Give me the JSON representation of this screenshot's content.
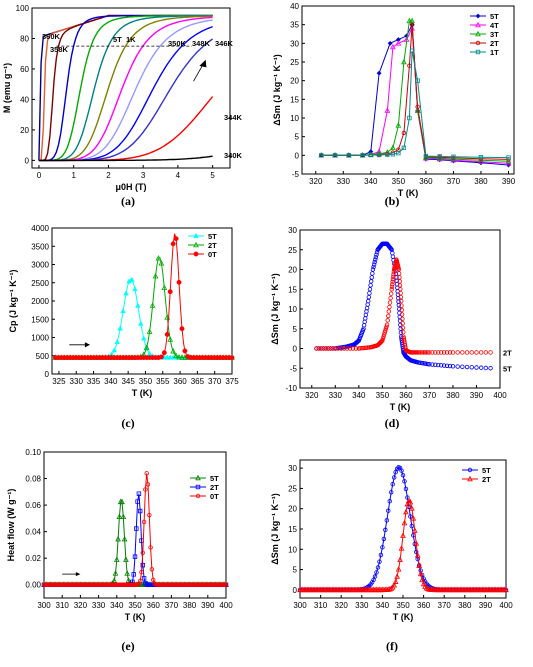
{
  "chart_data": [
    {
      "panel": "(a)",
      "type": "line",
      "xlabel": "μ0H (T)",
      "ylabel": "M (emu g⁻¹)",
      "xlim": [
        -0.2,
        5.5
      ],
      "ylim": [
        -5,
        100
      ],
      "xticks": [
        0,
        1,
        2,
        3,
        4,
        5
      ],
      "yticks": [
        0,
        20,
        40,
        60,
        80,
        100
      ],
      "annotations": [
        "360K",
        "358K",
        "5T",
        "1K",
        "350K",
        "348K",
        "346K",
        "344K",
        "340K"
      ],
      "series": [
        {
          "color": "#000080",
          "H_half": 0.05
        },
        {
          "color": "#e06030",
          "H_half": 0.15
        },
        {
          "color": "#800000",
          "H_half": 0.4
        },
        {
          "color": "#0000cc",
          "H_half": 0.8
        },
        {
          "color": "#00aa00",
          "H_half": 1.2
        },
        {
          "color": "#008080",
          "H_half": 1.6
        },
        {
          "color": "#808000",
          "H_half": 2.0
        },
        {
          "color": "#ff00ff",
          "H_half": 2.4
        },
        {
          "color": "#9999ff",
          "H_half": 2.8
        },
        {
          "color": "#0000ff",
          "H_half": 3.3
        },
        {
          "color": "#3333cc",
          "H_half": 3.8
        },
        {
          "color": "#ff0000",
          "H_half": 5.2
        },
        {
          "color": "#000000",
          "H_half": 9.0
        }
      ]
    },
    {
      "panel": "(b)",
      "type": "line",
      "xlabel": "T (K)",
      "ylabel": "ΔSm (J kg⁻¹ K⁻¹)",
      "xlim": [
        315,
        392
      ],
      "ylim": [
        -5,
        40
      ],
      "xticks": [
        320,
        330,
        340,
        350,
        360,
        370,
        380,
        390
      ],
      "yticks": [
        -5,
        0,
        5,
        10,
        15,
        20,
        25,
        30,
        35,
        40
      ],
      "legend": "top-right",
      "series": [
        {
          "name": "5T",
          "color": "#0000cc",
          "x": [
            322,
            327,
            332,
            337,
            340,
            343,
            347,
            350,
            353,
            355,
            357,
            360,
            365,
            370,
            380,
            390
          ],
          "y": [
            0,
            0,
            0,
            0,
            1,
            22,
            30,
            31,
            32,
            35,
            12,
            -1,
            -1.2,
            -1.5,
            -2,
            -2.6
          ]
        },
        {
          "name": "4T",
          "color": "#ff00ff",
          "x": [
            322,
            327,
            332,
            337,
            340,
            343,
            346,
            348,
            350,
            353,
            355,
            357,
            360,
            365,
            370,
            380,
            390
          ],
          "y": [
            0,
            0,
            0,
            0,
            0.2,
            1,
            12,
            29,
            30,
            31,
            34,
            12,
            -0.8,
            -1,
            -1.3,
            -1.7,
            -2.1
          ]
        },
        {
          "name": "3T",
          "color": "#00aa00",
          "x": [
            322,
            327,
            332,
            337,
            340,
            343,
            346,
            348,
            350,
            352,
            354,
            355,
            357,
            360,
            365,
            370,
            380,
            390
          ],
          "y": [
            0,
            0,
            0,
            0,
            0.2,
            0.4,
            0.8,
            2,
            8,
            25,
            36,
            36,
            12,
            -0.6,
            -0.8,
            -1,
            -1.3,
            -1.6
          ]
        },
        {
          "name": "2T",
          "color": "#cc0000",
          "x": [
            322,
            327,
            332,
            337,
            340,
            343,
            346,
            348,
            350,
            352,
            354,
            355,
            357,
            360,
            365,
            370,
            380,
            390
          ],
          "y": [
            0,
            0,
            0,
            0,
            0.1,
            0.2,
            0.4,
            0.7,
            1.5,
            6,
            24,
            35,
            13,
            -0.4,
            -0.5,
            -0.7,
            -0.9,
            -1.1
          ]
        },
        {
          "name": "1T",
          "color": "#008b8b",
          "x": [
            322,
            327,
            332,
            337,
            340,
            343,
            346,
            348,
            350,
            352,
            354,
            355,
            357,
            360,
            365,
            370,
            380,
            390
          ],
          "y": [
            0,
            0,
            0,
            0,
            0.1,
            0.1,
            0.2,
            0.3,
            0.6,
            2,
            10,
            28,
            20,
            -0.2,
            -0.3,
            -0.4,
            -0.5,
            -0.6
          ]
        }
      ]
    },
    {
      "panel": "(c)",
      "type": "line",
      "xlabel": "T (K)",
      "ylabel": "Cp (J kg⁻¹ K⁻¹)",
      "xlim": [
        323,
        375
      ],
      "ylim": [
        0,
        4000
      ],
      "xticks": [
        325,
        330,
        335,
        340,
        345,
        350,
        355,
        360,
        365,
        370,
        375
      ],
      "yticks": [
        0,
        500,
        1000,
        1500,
        2000,
        2500,
        3000,
        3500,
        4000
      ],
      "legend": "top-right",
      "series": [
        {
          "name": "5T",
          "color": "#00ffff",
          "peak": 345.8,
          "height": 2150,
          "width": 2.2
        },
        {
          "name": "2T",
          "color": "#00aa00",
          "peak": 354.0,
          "height": 2750,
          "width": 1.7
        },
        {
          "name": "0T",
          "color": "#ff0000",
          "peak": 358.5,
          "height": 3400,
          "width": 1.2
        }
      ]
    },
    {
      "panel": "(d)",
      "type": "line",
      "xlabel": "T (K)",
      "ylabel": "ΔSm (J kg⁻¹ K⁻¹)",
      "xlim": [
        315,
        400
      ],
      "ylim": [
        -10,
        30
      ],
      "xticks": [
        320,
        330,
        340,
        350,
        360,
        370,
        380,
        390,
        400
      ],
      "yticks": [
        -10,
        -5,
        0,
        5,
        10,
        15,
        20,
        25,
        30
      ],
      "annotations": [
        "2T",
        "5T"
      ],
      "series": [
        {
          "name": "5T",
          "color": "#0000ff",
          "x": [
            322,
            330,
            335,
            338,
            340,
            342,
            344,
            346,
            348,
            350,
            352,
            354,
            356,
            357,
            358,
            359,
            360,
            362,
            365,
            370,
            380,
            396
          ],
          "y": [
            0,
            0,
            0.5,
            1,
            2,
            5,
            12,
            20,
            25,
            26.5,
            26.5,
            25,
            18,
            11,
            3,
            -1,
            -2,
            -3,
            -3.5,
            -4,
            -4.5,
            -5
          ]
        },
        {
          "name": "2T",
          "color": "#ff0000",
          "x": [
            322,
            330,
            340,
            345,
            348,
            350,
            352,
            354,
            355,
            356,
            357,
            358,
            359,
            360,
            362,
            365,
            370,
            380,
            396
          ],
          "y": [
            0,
            0,
            0,
            0.3,
            0.8,
            2,
            6,
            15,
            20,
            22.5,
            20,
            12,
            3,
            -0.5,
            -1,
            -1,
            -1,
            -1,
            -1
          ]
        }
      ]
    },
    {
      "panel": "(e)",
      "type": "line",
      "xlabel": "T (K)",
      "ylabel": "Heat flow (W g⁻¹)",
      "xlim": [
        300,
        400
      ],
      "ylim": [
        -0.01,
        0.1
      ],
      "xticks": [
        300,
        310,
        320,
        330,
        340,
        350,
        360,
        370,
        380,
        390,
        400
      ],
      "yticks": [
        0.0,
        0.02,
        0.04,
        0.06,
        0.08,
        0.1
      ],
      "legend": "top-right",
      "series": [
        {
          "name": "5T",
          "color": "#008000",
          "peak": 342.5,
          "height": 0.064,
          "width": 1.6
        },
        {
          "name": "2T",
          "color": "#0000ff",
          "peak": 352.0,
          "height": 0.069,
          "width": 1.3
        },
        {
          "name": "0T",
          "color": "#ff0000",
          "peak": 356.5,
          "height": 0.084,
          "width": 1.4
        }
      ]
    },
    {
      "panel": "(f)",
      "type": "line",
      "xlabel": "T (K)",
      "ylabel": "ΔSm (J kg⁻¹ K⁻¹)",
      "xlim": [
        300,
        400
      ],
      "ylim": [
        -2,
        32
      ],
      "xticks": [
        300,
        310,
        320,
        330,
        340,
        350,
        360,
        370,
        380,
        390,
        400
      ],
      "yticks": [
        0,
        5,
        10,
        15,
        20,
        25,
        30
      ],
      "legend": "top-right",
      "series": [
        {
          "name": "5T",
          "color": "#0000ff",
          "peak": 348,
          "height": 30.2,
          "width": 5.5
        },
        {
          "name": "2T",
          "color": "#ff0000",
          "peak": 353,
          "height": 22,
          "width": 3.0
        }
      ]
    }
  ],
  "panel_labels": [
    "(a)",
    "(b)",
    "(c)",
    "(d)",
    "(e)",
    "(f)"
  ]
}
